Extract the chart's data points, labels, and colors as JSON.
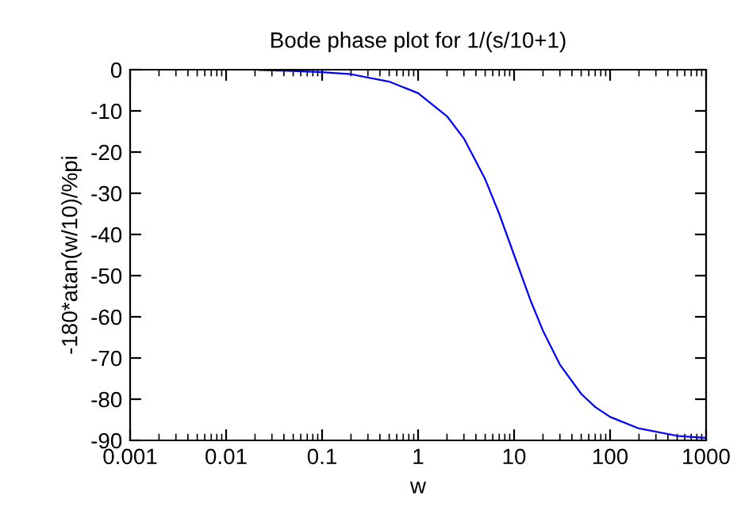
{
  "chart_data": {
    "type": "line",
    "title": "Bode phase plot for 1/(s/10+1)",
    "xlabel": "w",
    "ylabel": "-180*atan(w/10)/%pi",
    "log": "x",
    "series": [
      {
        "color": "#0000ff",
        "x": [
          0.022,
          0.05,
          0.1,
          0.2,
          0.5,
          1,
          2,
          3,
          5,
          7,
          10,
          15,
          20,
          30,
          50,
          70,
          100,
          200,
          500,
          1000
        ],
        "values": [
          -0.1,
          -0.3,
          -0.6,
          -1.1,
          -2.9,
          -5.7,
          -11.3,
          -16.7,
          -26.6,
          -35,
          -45,
          -56.3,
          -63.4,
          -71.6,
          -78.7,
          -81.9,
          -84.3,
          -87.1,
          -88.9,
          -89.4
        ]
      }
    ],
    "xlim": [
      0.001,
      1000
    ],
    "xticks": [
      0.001,
      0.01,
      0.1,
      1,
      10,
      100,
      1000
    ],
    "ylim": [
      -90,
      0
    ],
    "yticks": [
      -90,
      -80,
      -70,
      -60,
      -50,
      -40,
      -30,
      -20,
      -10,
      0
    ],
    "grid": false,
    "legend": false
  }
}
